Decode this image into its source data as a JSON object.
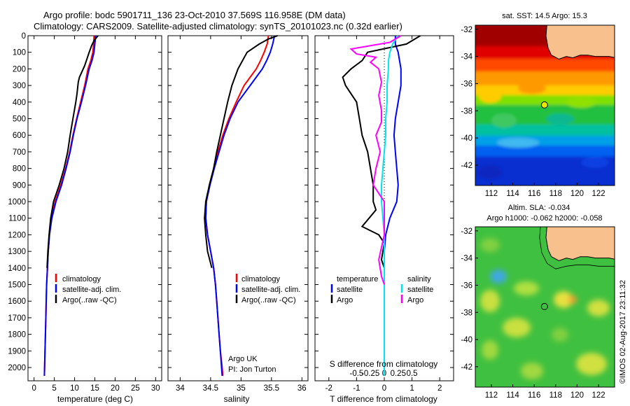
{
  "header": {
    "title_line1": "Argo profile: bodc 5901711_136 23-Oct-2010 37.569S 116.958E (DM data)",
    "title_line2": "Climatology: CARS2009. Satellite-adjusted climatology: synTS_20101023.nc (0.32d earlier)"
  },
  "side_stamp": "©IMOS 02-Aug-2017 23:11:32",
  "colors": {
    "climatology": "#ff0000",
    "satellite": "#0000ff",
    "argo": "#000000",
    "sal_satellite": "#00e5ee",
    "sal_argo": "#ff00ff",
    "land": "#f8c08c"
  },
  "chart_data": [
    {
      "type": "line",
      "id": "temperature",
      "xlabel": "temperature (deg C)",
      "xlim": [
        -1.5,
        31.5
      ],
      "xticks": [
        0,
        5,
        10,
        15,
        20,
        25,
        30
      ],
      "ylim": [
        2080,
        0
      ],
      "yticks": [
        0,
        100,
        200,
        300,
        400,
        500,
        600,
        700,
        800,
        900,
        1000,
        1100,
        1200,
        1300,
        1400,
        1500,
        1600,
        1700,
        1800,
        1900,
        2000
      ],
      "legend": [
        "climatology",
        "satellite-adj. clim.",
        "Argo(..raw -QC)"
      ],
      "series": [
        {
          "name": "climatology",
          "color": "#ff0000",
          "points": [
            [
              14.8,
              0
            ],
            [
              14.7,
              50
            ],
            [
              14.5,
              100
            ],
            [
              14.0,
              150
            ],
            [
              13.3,
              200
            ],
            [
              12.5,
              300
            ],
            [
              11.5,
              400
            ],
            [
              10.5,
              500
            ],
            [
              9.6,
              600
            ],
            [
              8.8,
              700
            ],
            [
              7.8,
              800
            ],
            [
              6.6,
              900
            ],
            [
              5.2,
              1000
            ],
            [
              4.3,
              1100
            ],
            [
              3.8,
              1200
            ],
            [
              3.5,
              1300
            ],
            [
              3.3,
              1400
            ],
            [
              3.1,
              1500
            ],
            [
              3.0,
              1600
            ],
            [
              2.9,
              1700
            ],
            [
              2.8,
              1800
            ],
            [
              2.7,
              1900
            ],
            [
              2.6,
              2000
            ],
            [
              2.55,
              2050
            ]
          ]
        },
        {
          "name": "satellite-adj. clim.",
          "color": "#0000ff",
          "points": [
            [
              15.2,
              0
            ],
            [
              15.0,
              50
            ],
            [
              14.8,
              100
            ],
            [
              14.3,
              150
            ],
            [
              13.6,
              200
            ],
            [
              12.7,
              300
            ],
            [
              11.7,
              400
            ],
            [
              10.6,
              500
            ],
            [
              9.7,
              600
            ],
            [
              8.9,
              700
            ],
            [
              7.9,
              800
            ],
            [
              6.8,
              900
            ],
            [
              5.4,
              1000
            ],
            [
              4.4,
              1100
            ],
            [
              3.8,
              1200
            ],
            [
              3.5,
              1300
            ],
            [
              3.3,
              1400
            ],
            [
              3.1,
              1500
            ],
            [
              3.0,
              1600
            ],
            [
              2.9,
              1700
            ],
            [
              2.8,
              1800
            ],
            [
              2.7,
              1900
            ],
            [
              2.6,
              2000
            ],
            [
              2.55,
              2050
            ]
          ]
        },
        {
          "name": "Argo(..raw -QC)",
          "color": "#000000",
          "points": [
            [
              15.8,
              0
            ],
            [
              14.8,
              30
            ],
            [
              14.2,
              60
            ],
            [
              13.6,
              100
            ],
            [
              12.5,
              180
            ],
            [
              11.2,
              250
            ],
            [
              10.9,
              280
            ],
            [
              10.6,
              350
            ],
            [
              10.3,
              400
            ],
            [
              9.6,
              500
            ],
            [
              8.9,
              600
            ],
            [
              8.3,
              700
            ],
            [
              7.4,
              800
            ],
            [
              6.2,
              900
            ],
            [
              4.8,
              1000
            ],
            [
              4.1,
              1100
            ],
            [
              3.7,
              1200
            ],
            [
              3.4,
              1300
            ],
            [
              3.2,
              1400
            ]
          ]
        }
      ]
    },
    {
      "type": "line",
      "id": "salinity",
      "xlabel": "salinity",
      "xlim": [
        33.8,
        36.1
      ],
      "xticks": [
        34,
        34.5,
        35,
        35.5,
        36
      ],
      "ylim": [
        2080,
        0
      ],
      "legend": [
        "climatology",
        "satellite-adj. clim.",
        "Argo(..raw -QC)"
      ],
      "annotation": [
        "Argo UK",
        "PI: Jon Turton"
      ],
      "series": [
        {
          "name": "climatology",
          "color": "#ff0000",
          "points": [
            [
              35.45,
              0
            ],
            [
              35.43,
              50
            ],
            [
              35.38,
              100
            ],
            [
              35.32,
              150
            ],
            [
              35.25,
              200
            ],
            [
              35.05,
              300
            ],
            [
              34.92,
              400
            ],
            [
              34.8,
              500
            ],
            [
              34.7,
              600
            ],
            [
              34.62,
              700
            ],
            [
              34.55,
              800
            ],
            [
              34.48,
              900
            ],
            [
              34.43,
              1000
            ],
            [
              34.42,
              1100
            ],
            [
              34.45,
              1200
            ],
            [
              34.5,
              1300
            ],
            [
              34.55,
              1400
            ],
            [
              34.58,
              1500
            ],
            [
              34.6,
              1600
            ],
            [
              34.62,
              1700
            ],
            [
              34.64,
              1800
            ],
            [
              34.66,
              1900
            ],
            [
              34.69,
              2000
            ],
            [
              34.7,
              2050
            ]
          ]
        },
        {
          "name": "satellite-adj. clim.",
          "color": "#0000ff",
          "points": [
            [
              35.55,
              0
            ],
            [
              35.52,
              50
            ],
            [
              35.48,
              100
            ],
            [
              35.42,
              150
            ],
            [
              35.35,
              200
            ],
            [
              35.15,
              300
            ],
            [
              34.95,
              400
            ],
            [
              34.82,
              500
            ],
            [
              34.72,
              600
            ],
            [
              34.64,
              700
            ],
            [
              34.56,
              800
            ],
            [
              34.49,
              900
            ],
            [
              34.43,
              1000
            ],
            [
              34.42,
              1100
            ],
            [
              34.45,
              1200
            ],
            [
              34.5,
              1300
            ],
            [
              34.55,
              1400
            ],
            [
              34.58,
              1500
            ],
            [
              34.6,
              1600
            ],
            [
              34.62,
              1700
            ],
            [
              34.64,
              1800
            ],
            [
              34.66,
              1900
            ],
            [
              34.68,
              2000
            ],
            [
              34.69,
              2050
            ]
          ]
        },
        {
          "name": "Argo(..raw -QC)",
          "color": "#000000",
          "points": [
            [
              35.6,
              0
            ],
            [
              35.45,
              20
            ],
            [
              35.3,
              50
            ],
            [
              35.1,
              100
            ],
            [
              34.95,
              200
            ],
            [
              34.85,
              300
            ],
            [
              34.78,
              400
            ],
            [
              34.72,
              500
            ],
            [
              34.66,
              600
            ],
            [
              34.6,
              700
            ],
            [
              34.55,
              800
            ],
            [
              34.48,
              900
            ],
            [
              34.42,
              1000
            ],
            [
              34.4,
              1100
            ],
            [
              34.42,
              1200
            ],
            [
              34.45,
              1300
            ],
            [
              34.52,
              1400
            ]
          ]
        }
      ]
    },
    {
      "type": "line",
      "id": "differences",
      "xlabel": "T difference from climatology",
      "xlabel_top": "S difference from climatology",
      "xlim": [
        -2.5,
        2.5
      ],
      "xticks": [
        -2,
        -1,
        0,
        1,
        2
      ],
      "xticks_s": [
        "-0.5",
        "-0.25",
        "0",
        "0.25",
        "0.5"
      ],
      "ylim": [
        2080,
        0
      ],
      "legend_t": {
        "header": "temperature",
        "items": [
          "satellite",
          "Argo"
        ]
      },
      "legend_s": {
        "header": "salinity",
        "items": [
          "satellite",
          "Argo"
        ]
      },
      "series": [
        {
          "name": "satellite",
          "color": "#0000ff",
          "points": [
            [
              0.4,
              0
            ],
            [
              0.4,
              50
            ],
            [
              0.5,
              100
            ],
            [
              0.6,
              200
            ],
            [
              0.6,
              300
            ],
            [
              0.5,
              400
            ],
            [
              0.4,
              500
            ],
            [
              0.35,
              600
            ],
            [
              0.4,
              700
            ],
            [
              0.45,
              800
            ],
            [
              0.5,
              900
            ],
            [
              0.45,
              1000
            ],
            [
              0.2,
              1100
            ],
            [
              0.05,
              1200
            ],
            [
              0.0,
              1300
            ],
            [
              0.0,
              2050
            ]
          ]
        },
        {
          "name": "Argo",
          "color": "#000000",
          "points": [
            [
              1.3,
              0
            ],
            [
              0.8,
              50
            ],
            [
              -0.6,
              100
            ],
            [
              -0.8,
              150
            ],
            [
              -1.2,
              200
            ],
            [
              -1.5,
              250
            ],
            [
              -1.4,
              300
            ],
            [
              -1.0,
              400
            ],
            [
              -0.9,
              500
            ],
            [
              -0.8,
              600
            ],
            [
              -0.6,
              700
            ],
            [
              -0.5,
              800
            ],
            [
              -0.4,
              900
            ],
            [
              -0.4,
              1000
            ],
            [
              -0.3,
              1050
            ],
            [
              -0.8,
              1150
            ],
            [
              -0.2,
              1200
            ],
            [
              0.0,
              1250
            ],
            [
              -0.1,
              1350
            ],
            [
              0.0,
              1400
            ]
          ]
        },
        {
          "name": "satellite",
          "color": "#00e5ee",
          "points": [
            [
              0.5,
              0
            ],
            [
              0.3,
              50
            ],
            [
              0.2,
              100
            ],
            [
              0.15,
              150
            ],
            [
              0.15,
              200
            ],
            [
              0.1,
              300
            ],
            [
              0.1,
              400
            ],
            [
              0.05,
              500
            ],
            [
              0.05,
              600
            ],
            [
              0.0,
              700
            ],
            [
              -0.05,
              800
            ],
            [
              -0.1,
              900
            ],
            [
              -0.1,
              1000
            ],
            [
              -0.05,
              1100
            ],
            [
              0.0,
              1200
            ],
            [
              0.0,
              2050
            ]
          ]
        },
        {
          "name": "Argo",
          "color": "#ff00ff",
          "points": [
            [
              0.6,
              0
            ],
            [
              0.2,
              40
            ],
            [
              -1.2,
              80
            ],
            [
              -1.0,
              110
            ],
            [
              -0.3,
              130
            ],
            [
              -0.5,
              160
            ],
            [
              -0.2,
              200
            ],
            [
              -0.1,
              280
            ],
            [
              -0.2,
              360
            ],
            [
              -0.1,
              450
            ],
            [
              -0.1,
              520
            ],
            [
              -0.3,
              600
            ],
            [
              -0.15,
              700
            ],
            [
              -0.3,
              800
            ],
            [
              -0.4,
              900
            ],
            [
              -0.2,
              950
            ],
            [
              0.0,
              1000
            ],
            [
              0.0,
              1200
            ],
            [
              -0.2,
              1350
            ],
            [
              -0.1,
              1450
            ],
            [
              0.0,
              1500
            ]
          ]
        }
      ]
    },
    {
      "type": "heatmap",
      "id": "sst_map",
      "title": "sat. SST: 14.5 Argo: 15.3",
      "xlim": [
        110.5,
        123.5
      ],
      "ylim": [
        -43.5,
        -31.7
      ],
      "xticks": [
        112,
        114,
        116,
        118,
        120,
        122
      ],
      "yticks": [
        -32,
        -34,
        -36,
        -38,
        -40,
        -42
      ],
      "marker": [
        116.958,
        -37.569
      ]
    },
    {
      "type": "heatmap",
      "id": "sla_map",
      "title_line1": "Altim. SLA: -0.034",
      "title_line2": "Argo h1000: -0.062 h2000: -0.058",
      "xlim": [
        110.5,
        123.5
      ],
      "ylim": [
        -43.5,
        -31.7
      ],
      "xticks": [
        112,
        114,
        116,
        118,
        120,
        122
      ],
      "yticks": [
        -32,
        -34,
        -36,
        -38,
        -40,
        -42
      ],
      "marker": [
        116.958,
        -37.569
      ]
    }
  ]
}
